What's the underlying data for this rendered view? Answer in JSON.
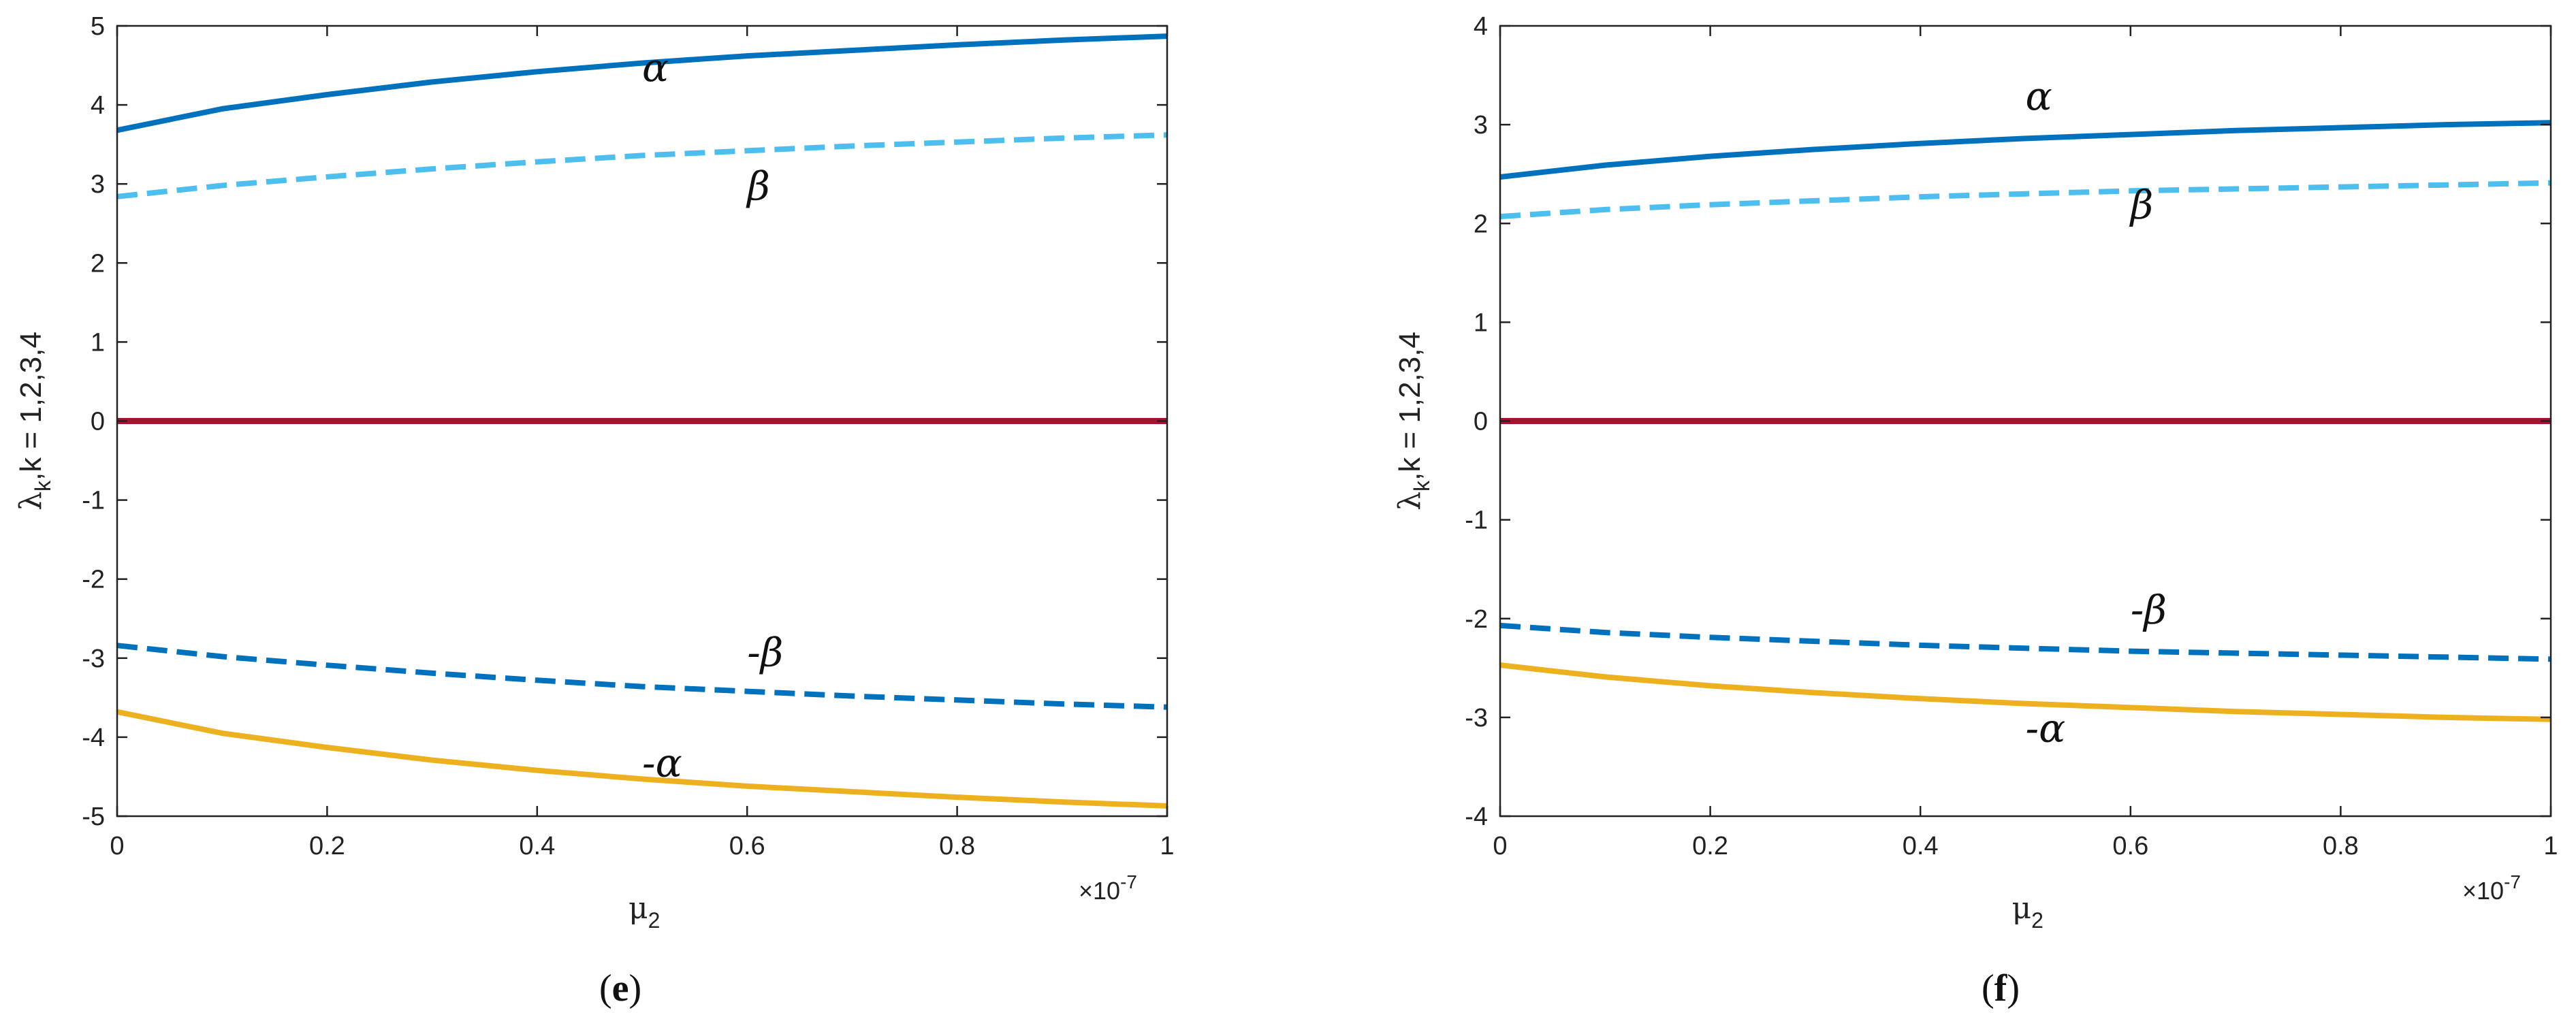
{
  "chart_data": [
    {
      "type": "line",
      "panel_id": "e",
      "caption": "(e)",
      "caption_letter": "e",
      "title": "",
      "xlabel": "μ",
      "xlabel_sub": "2",
      "ylabel": "λ",
      "ylabel_sub": "k",
      "ylabel_rest": ",k = 1,2,3,4",
      "x_exponent_prefix": "×10",
      "x_exponent_power": "-7",
      "xlim": [
        0,
        1
      ],
      "ylim": [
        -5,
        5
      ],
      "xticks": [
        0,
        0.2,
        0.4,
        0.6,
        0.8,
        1
      ],
      "xtick_labels": [
        "0",
        "0.2",
        "0.4",
        "0.6",
        "0.8",
        "1"
      ],
      "yticks": [
        -5,
        -4,
        -3,
        -2,
        -1,
        0,
        1,
        2,
        3,
        4,
        5
      ],
      "ytick_labels": [
        "-5",
        "-4",
        "-3",
        "-2",
        "-1",
        "0",
        "1",
        "2",
        "3",
        "4",
        "5"
      ],
      "grid": false,
      "series": [
        {
          "name": "α",
          "color": "#0072BD",
          "dash": "solid",
          "x": [
            0,
            0.1,
            0.2,
            0.3,
            0.4,
            0.5,
            0.6,
            0.7,
            0.8,
            0.9,
            1.0
          ],
          "values": [
            3.68,
            3.95,
            4.13,
            4.29,
            4.42,
            4.53,
            4.62,
            4.69,
            4.76,
            4.82,
            4.87
          ]
        },
        {
          "name": "β",
          "color": "#4DBEEE",
          "dash": "dashed",
          "x": [
            0,
            0.1,
            0.2,
            0.3,
            0.4,
            0.5,
            0.6,
            0.7,
            0.8,
            0.9,
            1.0
          ],
          "values": [
            2.84,
            2.98,
            3.09,
            3.19,
            3.28,
            3.36,
            3.42,
            3.48,
            3.53,
            3.58,
            3.62
          ]
        },
        {
          "name": "0",
          "color": "#A2142F",
          "dash": "solid",
          "x": [
            0,
            1.0
          ],
          "values": [
            0,
            0
          ]
        },
        {
          "name": "-β",
          "color": "#0072BD",
          "dash": "dashed",
          "x": [
            0,
            0.1,
            0.2,
            0.3,
            0.4,
            0.5,
            0.6,
            0.7,
            0.8,
            0.9,
            1.0
          ],
          "values": [
            -2.84,
            -2.98,
            -3.09,
            -3.19,
            -3.28,
            -3.36,
            -3.42,
            -3.48,
            -3.53,
            -3.58,
            -3.62
          ]
        },
        {
          "name": "-α",
          "color": "#EDB120",
          "dash": "solid",
          "x": [
            0,
            0.1,
            0.2,
            0.3,
            0.4,
            0.5,
            0.6,
            0.7,
            0.8,
            0.9,
            1.0
          ],
          "values": [
            -3.68,
            -3.95,
            -4.13,
            -4.29,
            -4.42,
            -4.53,
            -4.62,
            -4.69,
            -4.76,
            -4.82,
            -4.87
          ]
        }
      ],
      "annotations": [
        {
          "text": "α",
          "x": 0.5,
          "y": 4.3
        },
        {
          "text": "β",
          "x": 0.6,
          "y": 2.8
        },
        {
          "text": "-β",
          "x": 0.6,
          "y": -3.1
        },
        {
          "text": "-α",
          "x": 0.5,
          "y": -4.5
        }
      ]
    },
    {
      "type": "line",
      "panel_id": "f",
      "caption": "(f)",
      "caption_letter": "f",
      "title": "",
      "xlabel": "μ",
      "xlabel_sub": "2",
      "ylabel": "λ",
      "ylabel_sub": "k",
      "ylabel_rest": ",k = 1,2,3,4",
      "x_exponent_prefix": "×10",
      "x_exponent_power": "-7",
      "xlim": [
        0,
        1
      ],
      "ylim": [
        -4,
        4
      ],
      "xticks": [
        0,
        0.2,
        0.4,
        0.6,
        0.8,
        1
      ],
      "xtick_labels": [
        "0",
        "0.2",
        "0.4",
        "0.6",
        "0.8",
        "1"
      ],
      "yticks": [
        -4,
        -3,
        -2,
        -1,
        0,
        1,
        2,
        3,
        4
      ],
      "ytick_labels": [
        "-4",
        "-3",
        "-2",
        "-1",
        "0",
        "1",
        "2",
        "3",
        "4"
      ],
      "grid": false,
      "series": [
        {
          "name": "α",
          "color": "#0072BD",
          "dash": "solid",
          "x": [
            0,
            0.1,
            0.2,
            0.3,
            0.4,
            0.5,
            0.6,
            0.7,
            0.8,
            0.9,
            1.0
          ],
          "values": [
            2.47,
            2.59,
            2.68,
            2.75,
            2.81,
            2.86,
            2.9,
            2.94,
            2.97,
            3.0,
            3.02
          ]
        },
        {
          "name": "β",
          "color": "#4DBEEE",
          "dash": "dashed",
          "x": [
            0,
            0.1,
            0.2,
            0.3,
            0.4,
            0.5,
            0.6,
            0.7,
            0.8,
            0.9,
            1.0
          ],
          "values": [
            2.07,
            2.14,
            2.19,
            2.23,
            2.27,
            2.3,
            2.33,
            2.35,
            2.37,
            2.39,
            2.41
          ]
        },
        {
          "name": "0",
          "color": "#A2142F",
          "dash": "solid",
          "x": [
            0,
            1.0
          ],
          "values": [
            0,
            0
          ]
        },
        {
          "name": "-β",
          "color": "#0072BD",
          "dash": "dashed",
          "x": [
            0,
            0.1,
            0.2,
            0.3,
            0.4,
            0.5,
            0.6,
            0.7,
            0.8,
            0.9,
            1.0
          ],
          "values": [
            -2.07,
            -2.14,
            -2.19,
            -2.23,
            -2.27,
            -2.3,
            -2.33,
            -2.35,
            -2.37,
            -2.39,
            -2.41
          ]
        },
        {
          "name": "-α",
          "color": "#EDB120",
          "dash": "solid",
          "x": [
            0,
            0.1,
            0.2,
            0.3,
            0.4,
            0.5,
            0.6,
            0.7,
            0.8,
            0.9,
            1.0
          ],
          "values": [
            -2.47,
            -2.59,
            -2.68,
            -2.75,
            -2.81,
            -2.86,
            -2.9,
            -2.94,
            -2.97,
            -3.0,
            -3.02
          ]
        }
      ],
      "annotations": [
        {
          "text": "α",
          "x": 0.5,
          "y": 3.15
        },
        {
          "text": "β",
          "x": 0.6,
          "y": 2.05
        },
        {
          "text": "-β",
          "x": 0.6,
          "y": -2.05
        },
        {
          "text": "-α",
          "x": 0.5,
          "y": -3.25
        }
      ]
    }
  ]
}
